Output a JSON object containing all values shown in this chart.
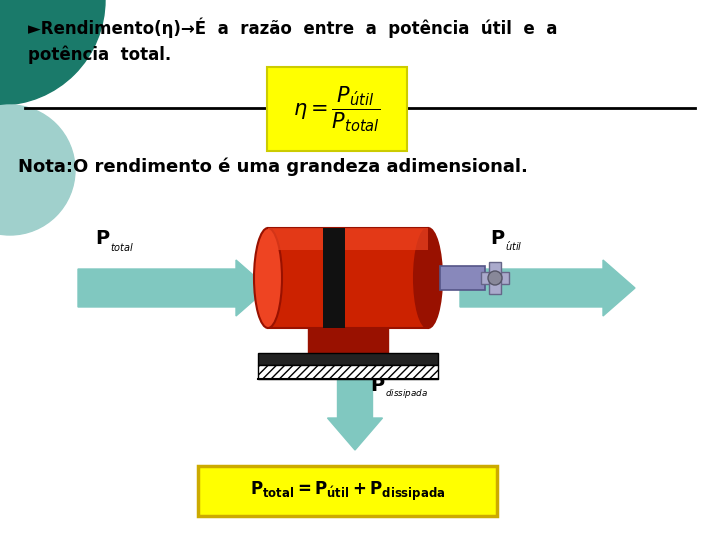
{
  "bg_color": "#ffffff",
  "title_line1": "►Rendimento(η)→É  a  razão  entre  a  potência  útil  e  a",
  "title_line2": "potência  total.",
  "formula_box_color": "#ffff00",
  "formula_text": "$\\eta = \\dfrac{P_{\\acute{u}til}}{P_{total}}$",
  "note_text": "Nota:O rendimento é uma grandeza adimensional.",
  "arrow_color": "#80c8c0",
  "ptotal_label_main": "P",
  "ptotal_label_sub": "total",
  "putil_label_main": "P",
  "putil_label_sub": "útil",
  "pdissipada_label_main": "P",
  "pdissipada_label_sub": "dissipada",
  "bottom_box_color": "#ffff00",
  "bottom_box_border": "#ccaa00",
  "bottom_formula": "$\\mathbf{P_{total} = P_{\\acute{u}til} + P_{dissipada}}$",
  "line_color": "#000000",
  "circle_color1": "#1a7a6a",
  "circle_color2": "#a0d0cc",
  "text_color": "#000000",
  "motor_red": "#cc2200",
  "motor_red_dark": "#991100",
  "motor_red_light": "#ee4422",
  "motor_black": "#111111",
  "shaft_color": "#8888bb",
  "shaft_dark": "#555588",
  "base_color": "#222222",
  "hatch_color": "#555555"
}
